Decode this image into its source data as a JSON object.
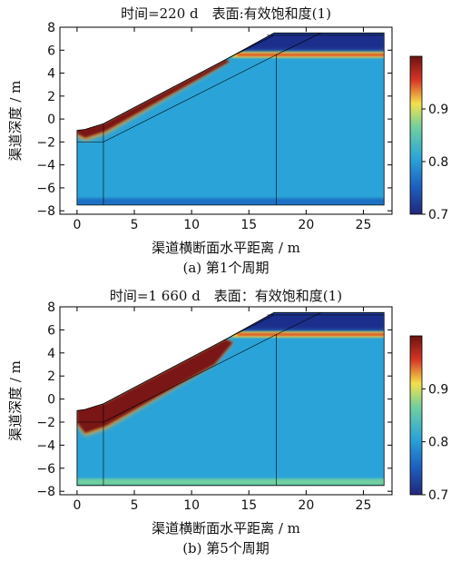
{
  "chart_data": [
    {
      "type": "heatmap",
      "title": "时间=220 d　表面:有效饱和度(1)",
      "caption": "(a) 第1个周期",
      "xlabel": "渠道横断面水平距离 / m",
      "ylabel": "渠道深度 / m",
      "xlim": [
        -1.5,
        27.5
      ],
      "ylim": [
        -8.3,
        8
      ],
      "xticks": [
        "0",
        "5",
        "10",
        "15",
        "20",
        "25"
      ],
      "yticks": [
        "8",
        "6",
        "4",
        "2",
        "0",
        "-2",
        "-4",
        "-6",
        "-8"
      ],
      "colorbar": {
        "min": 0.7,
        "max": 1.0,
        "ticks": [
          "0.9",
          "0.8",
          "0.7"
        ],
        "colors": [
          "#22267a",
          "#1d8fd6",
          "#2aa3d8",
          "#f3e14a",
          "#d73526",
          "#6b1310"
        ]
      },
      "colors": {
        "background": "#2aa3d8",
        "saturated": "#7a1412",
        "dry": "#1c2f8c",
        "transition": "#f0c93a"
      },
      "domain_outline": [
        [
          0,
          -1
        ],
        [
          0.7,
          -0.9
        ],
        [
          2.3,
          -0.4
        ],
        [
          13.0,
          5.2
        ],
        [
          17.2,
          7.5
        ],
        [
          26.8,
          7.5
        ],
        [
          26.8,
          -7.5
        ],
        [
          0,
          -7.5
        ]
      ]
    },
    {
      "type": "heatmap",
      "title": "时间=1 660 d　表面：有效饱和度(1)",
      "caption": "(b) 第5个周期",
      "xlabel": "渠道横断面水平距离 / m",
      "ylabel": "渠道深度 / m",
      "xlim": [
        -1.5,
        27.5
      ],
      "ylim": [
        -8.3,
        8
      ],
      "xticks": [
        "0",
        "5",
        "10",
        "15",
        "20",
        "25"
      ],
      "yticks": [
        "8",
        "6",
        "4",
        "2",
        "0",
        "-2",
        "-4",
        "-6",
        "-8"
      ],
      "colorbar": {
        "min": 0.7,
        "max": 1.0,
        "ticks": [
          "0.9",
          "0.8",
          "0.7"
        ],
        "colors": [
          "#22267a",
          "#1d8fd6",
          "#2aa3d8",
          "#f3e14a",
          "#d73526",
          "#6b1310"
        ]
      },
      "colors": {
        "background": "#2aa3d8",
        "saturated": "#7a1412",
        "dry": "#1c2f8c",
        "transition": "#f0c93a"
      },
      "domain_outline": [
        [
          0,
          -1
        ],
        [
          0.7,
          -0.9
        ],
        [
          2.3,
          -0.4
        ],
        [
          13.0,
          5.2
        ],
        [
          17.2,
          7.5
        ],
        [
          26.8,
          7.5
        ],
        [
          26.8,
          -7.5
        ],
        [
          0,
          -7.5
        ]
      ]
    }
  ]
}
